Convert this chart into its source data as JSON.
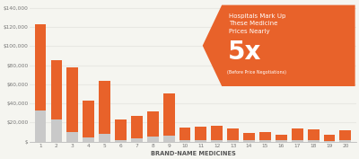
{
  "categories": [
    "1",
    "2",
    "3",
    "4",
    "5",
    "6",
    "7",
    "8",
    "9",
    "10",
    "11",
    "12",
    "13",
    "14",
    "15",
    "16",
    "17",
    "18",
    "19",
    "20"
  ],
  "gray_values": [
    33000,
    23000,
    10000,
    4000,
    8000,
    2000,
    3000,
    5000,
    6000,
    2000,
    2000,
    2000,
    2000,
    1500,
    1500,
    1500,
    2000,
    1500,
    1000,
    1500
  ],
  "orange_values": [
    90000,
    62000,
    68000,
    39000,
    56000,
    21000,
    24000,
    27000,
    44000,
    13000,
    14000,
    15000,
    12000,
    8000,
    8500,
    6000,
    12000,
    11000,
    6500,
    10000
  ],
  "gray_color": "#c9c9c9",
  "orange_color": "#e8622a",
  "bg_color": "#f5f5f0",
  "xlabel": "BRAND-NAME MEDICINES",
  "ytick_labels": [
    "$",
    "$20,000",
    "$40,000",
    "$60,000",
    "$80,000",
    "$100,000",
    "$120,000",
    "$140,000"
  ],
  "ytick_vals": [
    0,
    20000,
    40000,
    60000,
    80000,
    100000,
    120000,
    140000
  ],
  "ylim": 145000,
  "annotation_line1": "Hospitals Mark Up",
  "annotation_line2": "These Medicine",
  "annotation_line3": "Prices Nearly",
  "annotation_big": "5x",
  "annotation_small": "(Before Price Negotiations)",
  "ann_color": "#e8622a",
  "ann_text_color": "#ffffff",
  "grid_color": "#e8e8e3"
}
